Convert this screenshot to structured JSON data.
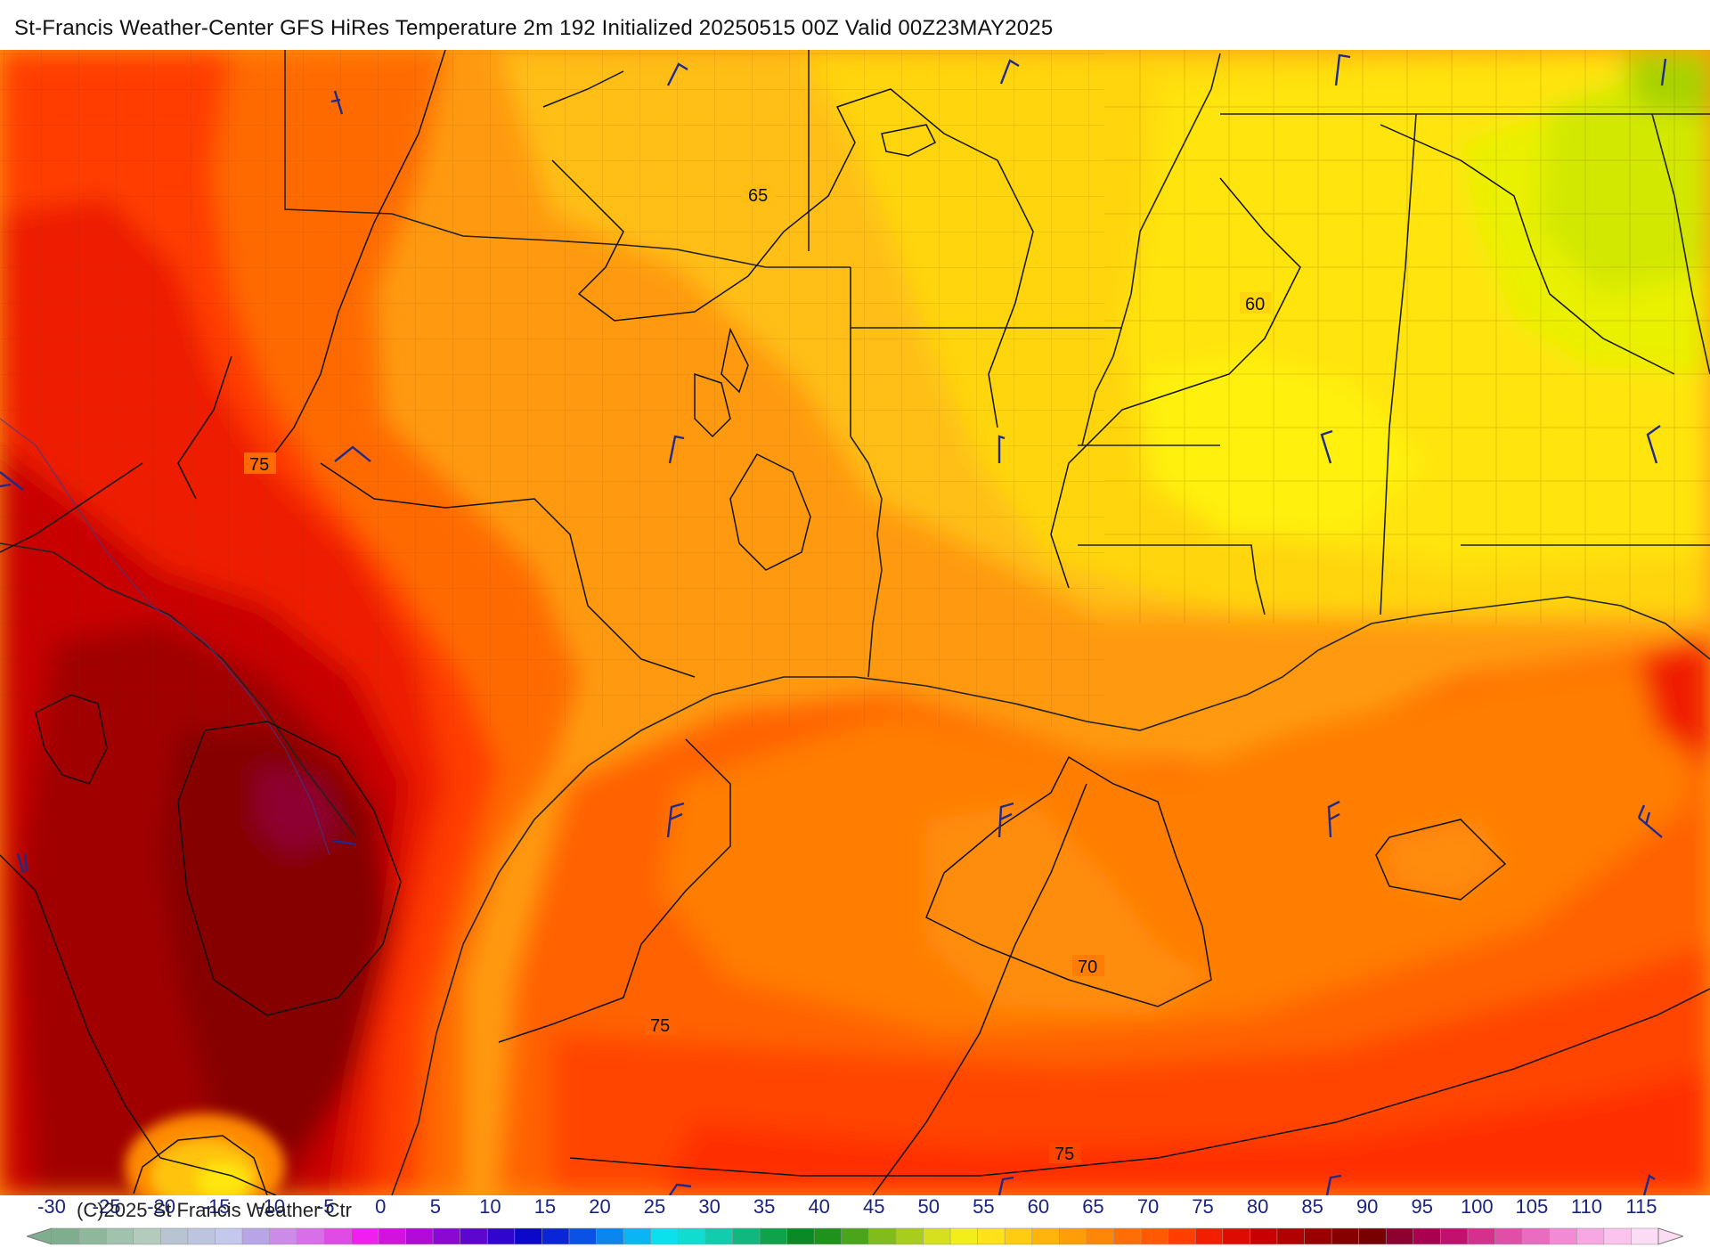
{
  "title": "St-Francis Weather-Center GFS HiRes Temperature 2m  192 Initialized 20250515 00Z Valid 00Z23MAY2025",
  "copyright": "(C)2025 St Francis Weather Ctr",
  "contour_labels": [
    {
      "value": "65",
      "id": "contour-label-65"
    },
    {
      "value": "60",
      "id": "contour-label-60"
    },
    {
      "value": "75",
      "id": "contour-label-75-west"
    },
    {
      "value": "70",
      "id": "contour-label-70"
    },
    {
      "value": "75",
      "id": "contour-label-75-gulf"
    },
    {
      "value": "75",
      "id": "contour-label-75-south"
    }
  ],
  "colorbar": {
    "ticks": [
      "-30",
      "-25",
      "-20",
      "-15",
      "-10",
      "-5",
      "0",
      "5",
      "10",
      "15",
      "20",
      "25",
      "30",
      "35",
      "40",
      "45",
      "50",
      "55",
      "60",
      "65",
      "70",
      "75",
      "80",
      "85",
      "90",
      "95",
      "100",
      "105",
      "110",
      "115"
    ],
    "colors": [
      "#7fae8f",
      "#8fb79c",
      "#a1c2ad",
      "#b2cbbd",
      "#b9c4d3",
      "#bcc4df",
      "#c3c8ec",
      "#b9a5e6",
      "#cc8be8",
      "#d86fe8",
      "#e04be6",
      "#f01ff0",
      "#d312e0",
      "#b20ad8",
      "#8a08d4",
      "#5d06cf",
      "#3006cf",
      "#0b08c9",
      "#0a25d6",
      "#0a52e6",
      "#0b86ef",
      "#0bb5f3",
      "#0be0ef",
      "#10ddd0",
      "#12ccae",
      "#10b87f",
      "#0ea24b",
      "#0a8a24",
      "#1e921a",
      "#4ba51a",
      "#7fbc1c",
      "#a8cd1c",
      "#d6e01e",
      "#f2ee1c",
      "#ffe21a",
      "#ffcc12",
      "#ffb40c",
      "#ff9e08",
      "#ff8606",
      "#ff6e04",
      "#ff5a02",
      "#ff3e00",
      "#f21e00",
      "#de0c00",
      "#c80000",
      "#b00000",
      "#9a0000",
      "#860000",
      "#780000",
      "#8e0030",
      "#aa0050",
      "#c2106f",
      "#d4308c",
      "#e04ea8",
      "#ea6cc0",
      "#f28ad4",
      "#f7a8e2",
      "#fac4ee",
      "#fcdcf5"
    ]
  },
  "colors": {
    "tick_text": "#1a237e",
    "barb": "#1e2a8c",
    "contour": "#111111"
  }
}
